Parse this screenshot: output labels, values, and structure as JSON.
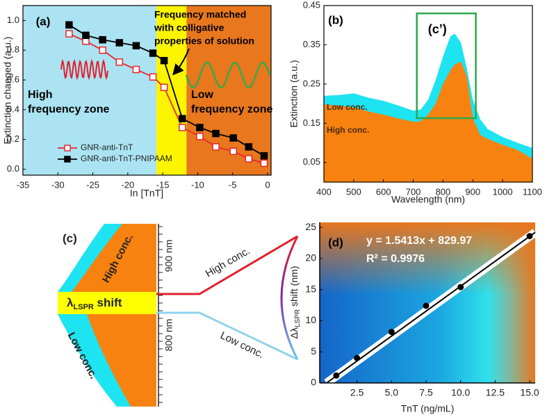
{
  "chart_data": [
    {
      "type": "line",
      "panel_label": "(a)",
      "xlabel": "In [TnT]",
      "ylabel": "Extinction changed (a.u.)",
      "x": [
        -28.4,
        -26.0,
        -23.6,
        -21.2,
        -18.8,
        -16.4,
        -14.8,
        -12.2,
        -9.7,
        -7.4,
        -4.9,
        -2.7,
        -0.5
      ],
      "series": [
        {
          "name": "GNR-anti-TnT",
          "color": "#e8262b",
          "marker": "open-square",
          "values": [
            0.91,
            0.86,
            0.8,
            0.72,
            0.67,
            0.62,
            0.55,
            0.28,
            0.22,
            0.15,
            0.12,
            0.07,
            0.04
          ]
        },
        {
          "name": "GNR-anti-TnT-PNIPAAM",
          "color": "#000000",
          "marker": "filled-square",
          "values": [
            0.97,
            0.9,
            0.87,
            0.85,
            0.83,
            0.78,
            0.73,
            0.34,
            0.28,
            0.24,
            0.21,
            0.15,
            0.09
          ]
        }
      ],
      "xlim": [
        -35,
        0.5
      ],
      "xticks": [
        -35,
        -30,
        -25,
        -20,
        -15,
        -10,
        -5,
        0
      ],
      "ylim": [
        -0.04,
        1.1
      ],
      "yticks": [
        {
          "value": 0,
          "label": "0.0"
        },
        0.2,
        0.4,
        0.6,
        0.8,
        {
          "value": 1,
          "label": "1.0"
        }
      ],
      "legend": "lower left",
      "zones": [
        {
          "from": -35,
          "to": -15.9,
          "color": "#abe3f2",
          "label": [
            "High",
            "frequency zone"
          ]
        },
        {
          "from": -15.9,
          "to": -11.6,
          "color": "#fdf400",
          "label": [
            "Frequency matched",
            "with colligative",
            "properties of solution"
          ]
        },
        {
          "from": -11.6,
          "to": 0.5,
          "color": "#e8771e",
          "label": [
            "Low",
            "frequency zone"
          ]
        }
      ]
    },
    {
      "type": "area",
      "panel_label": "(b)",
      "xlabel": "Wavelength (nm)",
      "ylabel": "Extinction (a.u.)",
      "x": [
        400,
        450,
        500,
        550,
        600,
        650,
        700,
        725,
        750,
        775,
        800,
        825,
        840,
        860,
        880,
        900,
        925,
        950,
        1000,
        1050,
        1100
      ],
      "series": [
        {
          "name": "Low conc.",
          "color": "#1ee3f0",
          "values": [
            0.22,
            0.222,
            0.226,
            0.215,
            0.207,
            0.195,
            0.182,
            0.185,
            0.21,
            0.26,
            0.32,
            0.372,
            0.378,
            0.355,
            0.29,
            0.21,
            0.16,
            0.135,
            0.115,
            0.1,
            0.087
          ]
        },
        {
          "name": "High conc.",
          "color": "#f7820f",
          "values": [
            0.198,
            0.195,
            0.19,
            0.18,
            0.172,
            0.162,
            0.154,
            0.155,
            0.172,
            0.2,
            0.25,
            0.285,
            0.3,
            0.307,
            0.27,
            0.163,
            0.12,
            0.11,
            0.095,
            0.082,
            0.06
          ]
        }
      ],
      "xlim": [
        400,
        1100
      ],
      "xticks": [
        400,
        500,
        600,
        700,
        800,
        900,
        1000,
        1100
      ],
      "ylim": [
        0,
        0.45
      ],
      "yticks": [
        0.05,
        0.15,
        0.25,
        0.35,
        0.45
      ],
      "highlight": {
        "label": "(c’)",
        "color": "#2aa84a",
        "x": [
          712,
          910
        ],
        "y": [
          0.163,
          0.43
        ]
      }
    },
    {
      "type": "scatter",
      "panel_label": "(d)",
      "xlabel": "TnT (ng/mL)",
      "ylabel": [
        "Δλ",
        "LSPR",
        " shift (nm)"
      ],
      "x": [
        1,
        2.5,
        5,
        7.5,
        10,
        15
      ],
      "values": [
        1.2,
        4.0,
        8.2,
        12.4,
        15.4,
        23.6
      ],
      "color": "#000000",
      "fit_line": {
        "x": [
          0.3,
          15.4
        ],
        "y": [
          0,
          24.2
        ]
      },
      "annotations": [
        "y = 1.5413x + 829.97",
        "R² = 0.9976"
      ],
      "xlim": [
        -0.2,
        15.4
      ],
      "xticks": [
        2.5,
        {
          "value": 5,
          "label": "5.0"
        },
        7.5,
        {
          "value": 10,
          "label": "10.0"
        },
        12.5,
        {
          "value": 15,
          "label": "15.0"
        }
      ],
      "ylim": [
        0,
        25.8
      ],
      "yticks": [
        0,
        5,
        10,
        15,
        20,
        25
      ]
    }
  ],
  "diagram": {
    "panel_label": "(c)",
    "high_label": "High conc.",
    "low_label": "Low conc.",
    "shift_label": [
      "λ",
      "LSPR",
      " shift"
    ],
    "scale_labels": [
      "900 nm",
      "800 nm"
    ],
    "branch_high": "High conc.",
    "branch_low": "Low conc."
  }
}
